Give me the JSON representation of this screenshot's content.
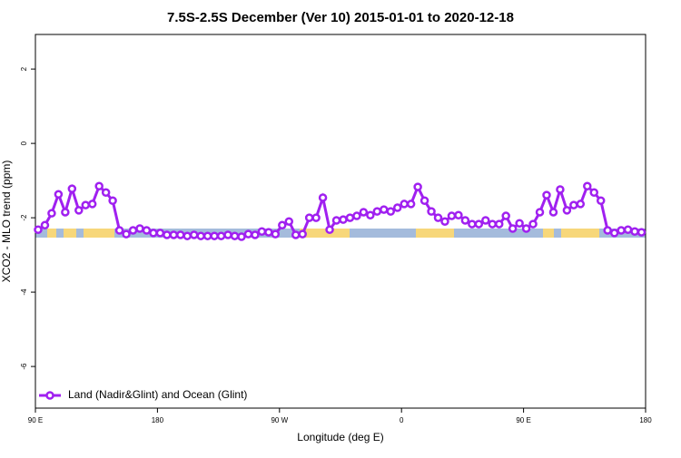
{
  "chart_data": {
    "type": "line",
    "title": "7.5S-2.5S December (Ver 10)   2015-01-01 to 2020-12-18",
    "x_label": "Longitude (deg E)",
    "y_label": "XCO2 - MLO trend (ppm)",
    "x": [
      92,
      97,
      102,
      107,
      112,
      117,
      122,
      127,
      132,
      137,
      142,
      147,
      152,
      157,
      162,
      167,
      172,
      177,
      182,
      187,
      192,
      197,
      202,
      207,
      212,
      217,
      222,
      227,
      232,
      237,
      242,
      247,
      252,
      257,
      262,
      267,
      272,
      277,
      282,
      287,
      292,
      297,
      302,
      307,
      312,
      317,
      322,
      327,
      332,
      337,
      342,
      347,
      352,
      357,
      362,
      367,
      372,
      377,
      382,
      387,
      392,
      397,
      402,
      407,
      412,
      417,
      422,
      427,
      432,
      437,
      442,
      447,
      452,
      457,
      462,
      467,
      472,
      477,
      482,
      487,
      492,
      497,
      502,
      507,
      512,
      517,
      522,
      527,
      532,
      537
    ],
    "series": [
      {
        "name": "Land (Nadir&Glint) and Ocean (Glint)",
        "color": "#a020f0",
        "values": [
          -2.32,
          -2.2,
          -1.88,
          -1.37,
          -1.85,
          -1.22,
          -1.8,
          -1.66,
          -1.63,
          -1.15,
          -1.32,
          -1.54,
          -2.34,
          -2.44,
          -2.34,
          -2.29,
          -2.34,
          -2.41,
          -2.41,
          -2.46,
          -2.46,
          -2.46,
          -2.49,
          -2.46,
          -2.49,
          -2.49,
          -2.49,
          -2.49,
          -2.46,
          -2.49,
          -2.51,
          -2.44,
          -2.46,
          -2.37,
          -2.39,
          -2.44,
          -2.2,
          -2.1,
          -2.46,
          -2.44,
          -2.0,
          -2.0,
          -1.46,
          -2.32,
          -2.07,
          -2.05,
          -2.0,
          -1.95,
          -1.85,
          -1.93,
          -1.83,
          -1.78,
          -1.83,
          -1.73,
          -1.63,
          -1.63,
          -1.17,
          -1.54,
          -1.83,
          -2.0,
          -2.1,
          -1.95,
          -1.93,
          -2.07,
          -2.17,
          -2.17,
          -2.07,
          -2.17,
          -2.17,
          -1.95,
          -2.29,
          -2.15,
          -2.29,
          -2.17,
          -1.85,
          -1.39,
          -1.85,
          -1.24,
          -1.8,
          -1.66,
          -1.63,
          -1.15,
          -1.32,
          -1.54,
          -2.34,
          -2.41,
          -2.34,
          -2.32,
          -2.37,
          -2.39
        ]
      }
    ],
    "xlim": [
      90,
      540
    ],
    "xticks": [
      {
        "value": 90,
        "label": "90 E"
      },
      180,
      {
        "value": 270,
        "label": "90 W"
      },
      {
        "value": 360,
        "label": "0"
      },
      {
        "value": 450,
        "label": "90 E"
      },
      180
    ],
    "ylim": [
      -7.12,
      2.93
    ],
    "yticks": [
      -6,
      -4,
      -2,
      0,
      2
    ],
    "legend": "bottom-left"
  }
}
